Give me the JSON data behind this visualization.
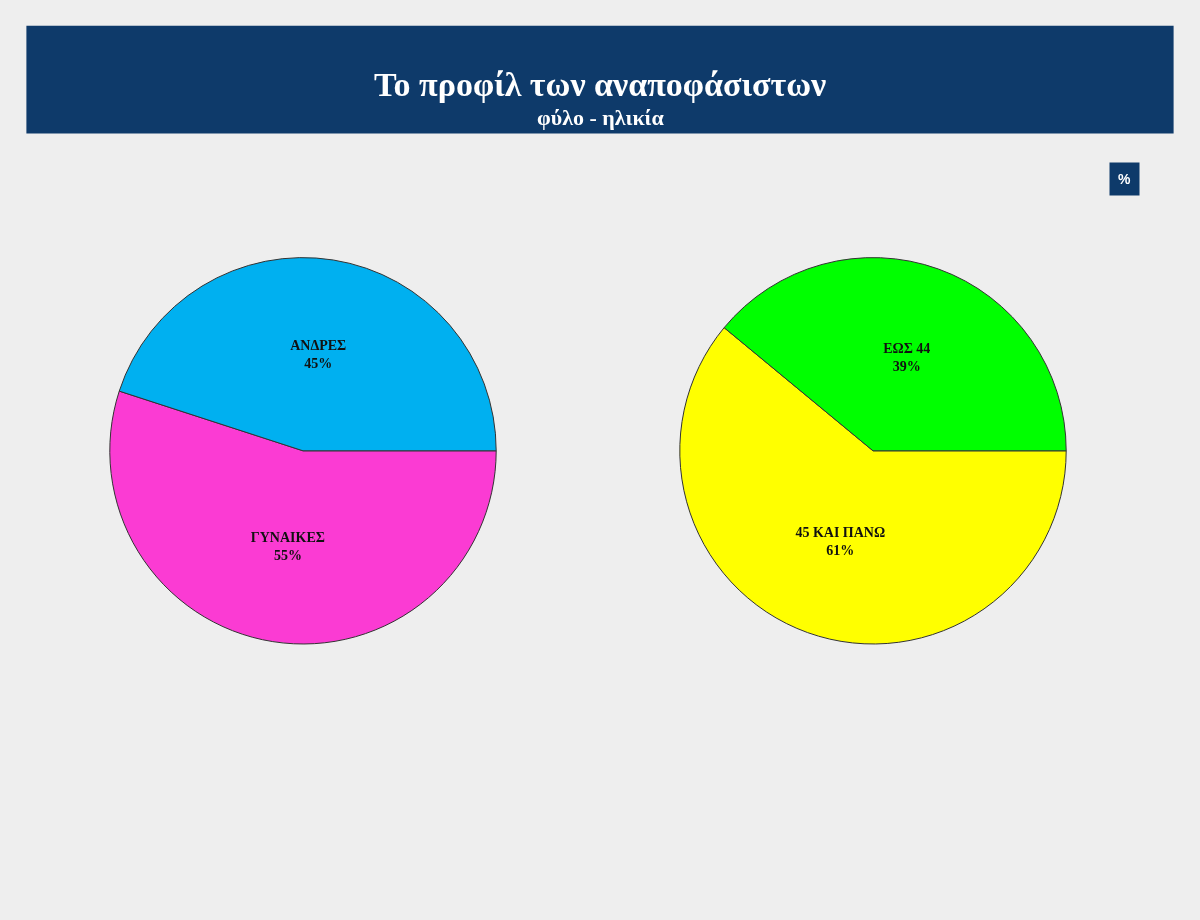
{
  "chart_data": [
    {
      "type": "pie",
      "title": "Το προφίλ των αναποφάσιστων",
      "subtitle": "φύλο - ηλικία",
      "annotations": [
        "%"
      ],
      "categories": [
        "ΓΥΝΑΙΚΕΣ",
        "ΑΝΔΡΕΣ"
      ],
      "values": [
        55,
        45
      ],
      "value_labels": [
        "55%",
        "45%"
      ],
      "colors": [
        "#fb3bd3",
        "#00b0f0"
      ]
    },
    {
      "type": "pie",
      "categories": [
        "45 ΚΑΙ ΠΑΝΩ",
        "ΕΩΣ 44"
      ],
      "values": [
        61,
        39
      ],
      "value_labels": [
        "61%",
        "39%"
      ],
      "colors": [
        "#ffff00",
        "#00ff00"
      ]
    }
  ]
}
